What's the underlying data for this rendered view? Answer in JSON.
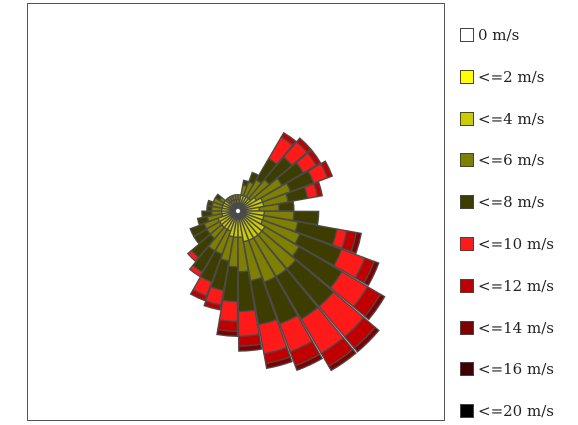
{
  "chart_data": {
    "type": "wind-rose",
    "title": "",
    "sector_count": 36,
    "bin_labels": [
      "0 m/s",
      "<=2 m/s",
      "<=4 m/s",
      "<=6 m/s",
      "<=8 m/s",
      "<=10 m/s",
      "<=12 m/s",
      "<=14 m/s",
      "<=16 m/s",
      "<=20 m/s"
    ],
    "bin_colors": [
      "#ffffff",
      "#ffff00",
      "#cccc00",
      "#808000",
      "#3d3d00",
      "#ff1a1a",
      "#c00000",
      "#800000",
      "#400000",
      "#000000"
    ],
    "radial_max": 42,
    "legend_position": "right",
    "grid": false,
    "series": [
      {
        "name": "0 m/s",
        "values": [
          0,
          0,
          0,
          0,
          0,
          0,
          0,
          0,
          0,
          0,
          0,
          0,
          0,
          0,
          0,
          0,
          0,
          0,
          0,
          0,
          0,
          0,
          0,
          0,
          0,
          0,
          0,
          0,
          0,
          0,
          0,
          0,
          0,
          0,
          0,
          0
        ]
      },
      {
        "name": "<=2 m/s",
        "values": [
          0.3,
          0.3,
          0.3,
          0.3,
          0.3,
          0.3,
          0.3,
          0.3,
          0.3,
          0.3,
          0.3,
          0.3,
          0.3,
          0.3,
          0.3,
          0.3,
          0.3,
          0.3,
          0.3,
          0.3,
          0.3,
          0.3,
          0.3,
          0.3,
          0.3,
          0.3,
          0.3,
          0.3,
          0.3,
          0.3,
          0.3,
          0.3,
          0.3,
          0.3,
          0.3,
          0.3
        ]
      },
      {
        "name": "<=4 m/s",
        "values": [
          4,
          5,
          5,
          4,
          3,
          3,
          3,
          3,
          2,
          2,
          2,
          2,
          2,
          2,
          3,
          3,
          3,
          3,
          3,
          3,
          4,
          4,
          4,
          4,
          4,
          5,
          5,
          5,
          6,
          6,
          6,
          6,
          6,
          5,
          5,
          5
        ]
      },
      {
        "name": "<=6 m/s",
        "values": [
          4,
          5,
          6,
          6,
          5,
          4,
          3,
          2,
          1,
          1,
          1,
          1,
          1,
          1,
          1,
          2,
          2,
          2,
          2,
          3,
          3,
          3,
          3,
          5,
          5,
          5,
          6,
          7,
          8,
          9,
          9,
          9,
          8,
          8,
          7,
          6
        ]
      },
      {
        "name": "<=8 m/s",
        "values": [
          3,
          4,
          5,
          5,
          6,
          5,
          2,
          1,
          0,
          0,
          0,
          0,
          0,
          0,
          1,
          0,
          1,
          1,
          2,
          2,
          3,
          3,
          5,
          5,
          6,
          6,
          7,
          8,
          9,
          9,
          10,
          10,
          10,
          9,
          8,
          5
        ]
      },
      {
        "name": "<=10 m/s",
        "values": [
          0,
          2,
          3,
          3,
          4,
          5,
          0,
          0,
          0,
          0,
          0,
          0,
          0,
          0,
          0,
          0,
          0,
          0,
          0,
          0,
          0,
          0,
          1,
          1,
          3,
          3,
          4,
          5,
          6,
          6,
          8,
          8,
          6,
          5,
          2,
          0
        ]
      },
      {
        "name": "<=12 m/s",
        "values": [
          0,
          1,
          1,
          1,
          1,
          1,
          0,
          0,
          0,
          0,
          0,
          0,
          0,
          0,
          0,
          0,
          0,
          0,
          0,
          0,
          0,
          0,
          0,
          0,
          1,
          1,
          2,
          2,
          2,
          3,
          3,
          3,
          3,
          2,
          2,
          0
        ]
      },
      {
        "name": "<=14 m/s",
        "values": [
          0,
          0,
          0,
          0,
          0,
          0,
          0,
          0,
          0,
          0,
          0,
          0,
          0,
          0,
          0,
          0,
          0,
          0,
          0,
          0,
          0,
          0,
          0,
          0,
          0,
          0,
          1,
          1,
          1,
          1,
          1,
          1,
          1,
          1,
          1,
          0
        ]
      },
      {
        "name": "<=16 m/s",
        "values": [
          0,
          0,
          0,
          0,
          0,
          0,
          0,
          0,
          0,
          0,
          0,
          0,
          0,
          0,
          0,
          0,
          0,
          0,
          0,
          0,
          0,
          0,
          0,
          0,
          0,
          0,
          0,
          0,
          0,
          0,
          0,
          0,
          0,
          0,
          0,
          0
        ]
      },
      {
        "name": "<=20 m/s",
        "values": [
          0,
          0,
          0,
          0,
          0,
          0,
          0,
          0,
          0,
          0,
          0,
          0,
          0,
          0,
          0,
          0,
          0,
          0,
          0,
          0,
          0,
          0,
          0,
          0,
          0,
          0,
          0,
          0,
          0,
          0,
          0,
          0,
          0,
          0,
          0,
          0
        ]
      }
    ]
  }
}
